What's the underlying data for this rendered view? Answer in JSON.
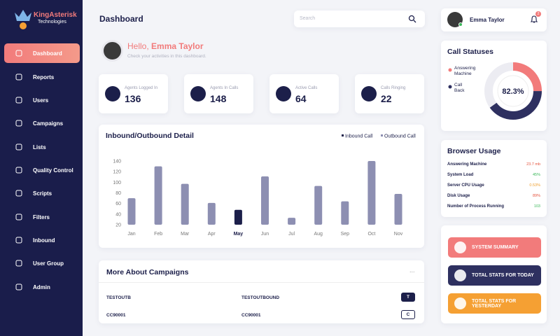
{
  "sidebar": {
    "logo": {
      "name": "KingAsterisk",
      "tagline": "Technologies"
    },
    "menu": [
      "Dashboard",
      "Reports",
      "Users",
      "Campaigns",
      "Lists",
      "Quality Control",
      "Scripts",
      "Filters",
      "Inbound",
      "User Group",
      "Admin"
    ]
  },
  "header": {
    "title": "Dashboard",
    "search_placeholder": "Search"
  },
  "user": {
    "name": "Emma Taylor",
    "notifications": "2"
  },
  "greeting": {
    "hello": "Hello,",
    "name": "Emma Taylor",
    "subtitle": "Check your activities in this dashboard."
  },
  "stats": [
    {
      "label": "Agents Logged In",
      "value": "136"
    },
    {
      "label": "Agents In Calls",
      "value": "148"
    },
    {
      "label": "Active Calls",
      "value": "64"
    },
    {
      "label": "Calls Ringing",
      "value": "22"
    }
  ],
  "chart_data": {
    "type": "bar",
    "title": "Inbound/Outbound Detail",
    "legend": [
      {
        "name": "Inbound Call",
        "color": "#1c1f4a"
      },
      {
        "name": "Outbound Call",
        "color": "#8d8fb2"
      }
    ],
    "categories": [
      "Jan",
      "Feb",
      "Mar",
      "Apr",
      "May",
      "Jun",
      "Jul",
      "Aug",
      "Sep",
      "Oct",
      "Nov"
    ],
    "values": [
      70,
      130,
      97,
      61,
      48,
      111,
      33,
      93,
      64,
      140,
      78
    ],
    "colors": [
      "#8d8fb2",
      "#8d8fb2",
      "#8d8fb2",
      "#8d8fb2",
      "#1c1f4a",
      "#8d8fb2",
      "#8d8fb2",
      "#8d8fb2",
      "#8d8fb2",
      "#8d8fb2",
      "#8d8fb2"
    ],
    "ylim": [
      20,
      140
    ],
    "yticks": [
      20,
      40,
      60,
      80,
      100,
      120,
      140
    ]
  },
  "campaigns": {
    "title": "More About Campaigns",
    "menu": "...",
    "rows": [
      [
        "TESTOUTB",
        "TESTOUTBOUND",
        "T"
      ],
      [
        "CC90001",
        "CC90001",
        "C"
      ]
    ]
  },
  "call_statuses": {
    "title": "Call Statuses",
    "center_label": "82.3%",
    "segments": [
      {
        "name": "Answering Machine",
        "color": "#f27b7b",
        "value": 25
      },
      {
        "name": "Call Back",
        "color": "#2e3060",
        "value": 40
      }
    ]
  },
  "browser_usage": {
    "title": "Browser Usage",
    "rows": [
      {
        "label": "Answering Machine",
        "value": "23.7 mb",
        "color": "#e5533d"
      },
      {
        "label": "System Load",
        "value": "45%",
        "color": "#3cb85a"
      },
      {
        "label": "Server CPU Usage",
        "value": "0.53%",
        "color": "#f0a030"
      },
      {
        "label": "Disk Usage",
        "value": "89%",
        "color": "#e5533d"
      },
      {
        "label": "Number of Process Running",
        "value": "103",
        "color": "#3cb85a"
      }
    ]
  },
  "actions": [
    {
      "label": "SYSTEM SUMMARY",
      "color": "#f27b7b"
    },
    {
      "label": "TOTAL STATS FOR TODAY",
      "color": "#2e3060"
    },
    {
      "label": "TOTAL STATS FOR YESTERDAY",
      "color": "#f5a033"
    }
  ]
}
